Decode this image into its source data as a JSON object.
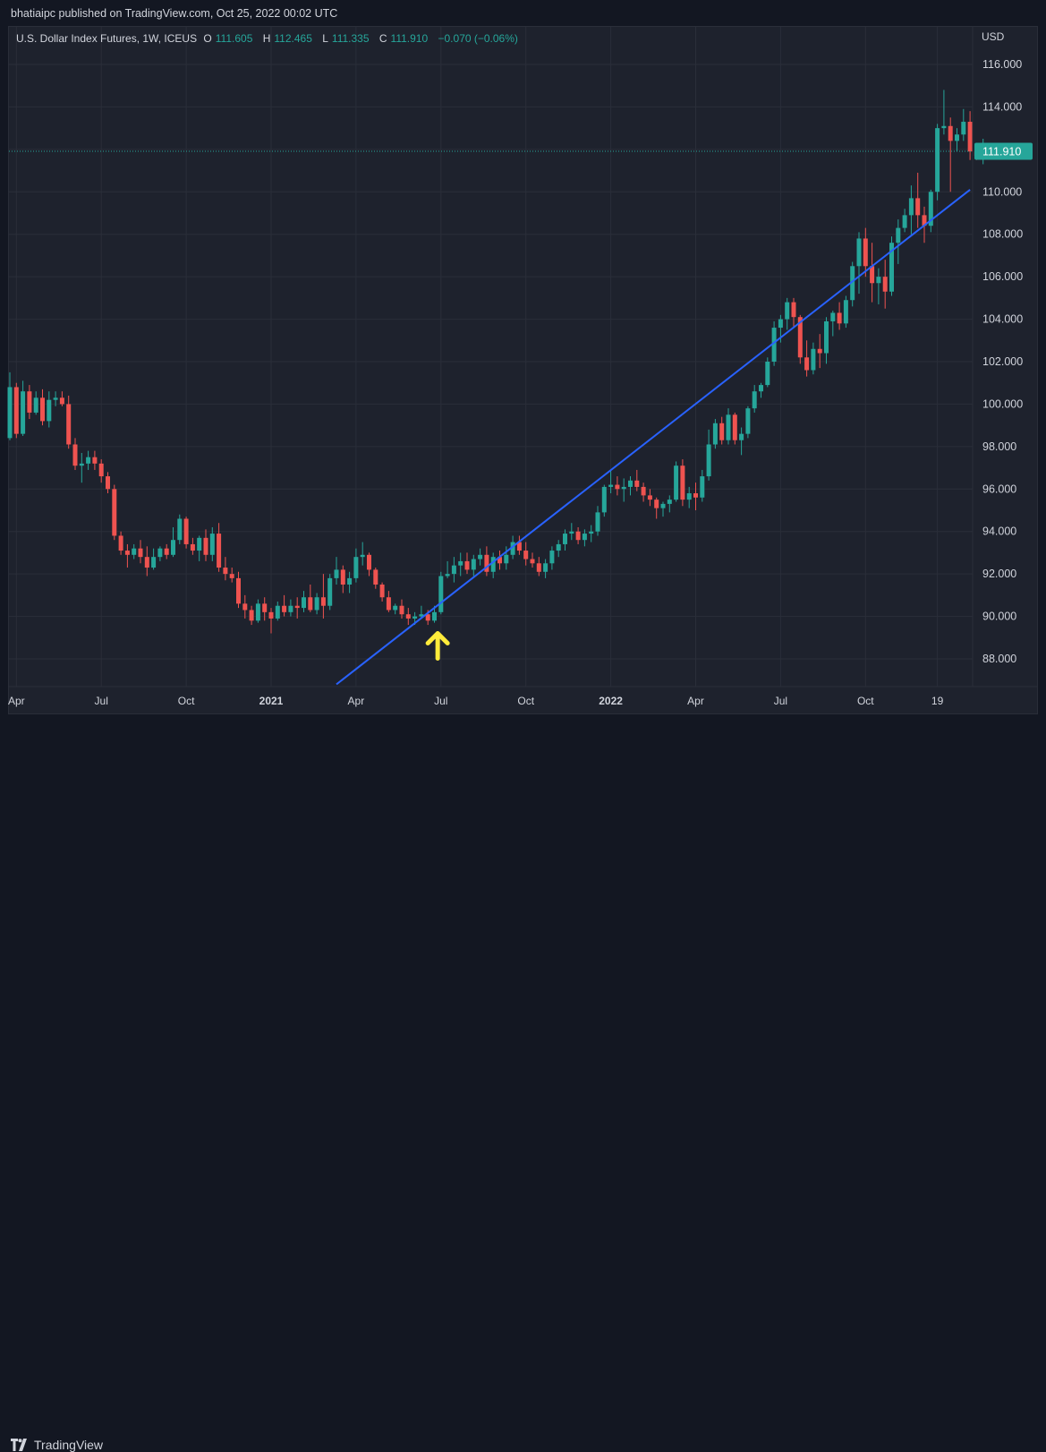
{
  "header": {
    "published": "bhatiaipc published on TradingView.com, Oct 25, 2022 00:02 UTC"
  },
  "legend": {
    "symbol": "U.S. Dollar Index Futures, 1W, ICEUS",
    "o_label": "O",
    "o_value": "111.605",
    "h_label": "H",
    "h_value": "112.465",
    "l_label": "L",
    "l_value": "111.335",
    "c_label": "C",
    "c_value": "111.910",
    "change": "−0.070 (−0.06%)"
  },
  "footer": {
    "brand": "TradingView"
  },
  "colors": {
    "up": "#26a69a",
    "down": "#ef5350",
    "trendline": "#2962ff",
    "arrow": "#ffeb3b",
    "price_tag": "#26a69a"
  },
  "chart_data": {
    "type": "candlestick",
    "title": "U.S. Dollar Index Futures, 1W, ICEUS",
    "currency": "USD",
    "ylim": [
      86.8,
      117.2
    ],
    "y_ticks": [
      "116.000",
      "114.000",
      "112.000",
      "110.000",
      "108.000",
      "106.000",
      "104.000",
      "102.000",
      "100.000",
      "98.000",
      "96.000",
      "94.000",
      "92.000",
      "90.000",
      "88.000"
    ],
    "x_ticks": [
      {
        "label": "Apr",
        "bold": false,
        "i": 1
      },
      {
        "label": "Jul",
        "bold": false,
        "i": 14
      },
      {
        "label": "Oct",
        "bold": false,
        "i": 27
      },
      {
        "label": "2021",
        "bold": true,
        "i": 40
      },
      {
        "label": "Apr",
        "bold": false,
        "i": 53
      },
      {
        "label": "Jul",
        "bold": false,
        "i": 66
      },
      {
        "label": "Oct",
        "bold": false,
        "i": 79
      },
      {
        "label": "2022",
        "bold": true,
        "i": 92
      },
      {
        "label": "Apr",
        "bold": false,
        "i": 105
      },
      {
        "label": "Jul",
        "bold": false,
        "i": 118
      },
      {
        "label": "Oct",
        "bold": false,
        "i": 131
      },
      {
        "label": "19",
        "bold": false,
        "i": 142
      }
    ],
    "last_price": "111.910",
    "last_price_value": 111.91,
    "trendline": {
      "start": {
        "i": 50,
        "value": 86.8
      },
      "end": {
        "i": 147,
        "value": 110.1
      }
    },
    "annotation": {
      "type": "up-arrow",
      "i": 65.5,
      "value": 89.2
    },
    "candles": [
      [
        98.4,
        101.5,
        98.3,
        100.8
      ],
      [
        100.8,
        101.0,
        98.4,
        98.6
      ],
      [
        98.6,
        101.1,
        98.5,
        100.6
      ],
      [
        100.6,
        100.9,
        99.3,
        99.6
      ],
      [
        99.6,
        100.6,
        99.5,
        100.3
      ],
      [
        100.3,
        100.7,
        99.0,
        99.2
      ],
      [
        99.2,
        100.6,
        98.9,
        100.2
      ],
      [
        100.2,
        100.6,
        99.9,
        100.3
      ],
      [
        100.3,
        100.6,
        99.9,
        100.0
      ],
      [
        100.0,
        100.4,
        97.9,
        98.1
      ],
      [
        98.1,
        98.4,
        96.9,
        97.1
      ],
      [
        97.1,
        97.7,
        96.3,
        97.2
      ],
      [
        97.2,
        97.8,
        96.9,
        97.5
      ],
      [
        97.5,
        97.8,
        96.9,
        97.2
      ],
      [
        97.2,
        97.4,
        96.3,
        96.6
      ],
      [
        96.6,
        96.8,
        95.8,
        96.0
      ],
      [
        96.0,
        96.2,
        93.6,
        93.8
      ],
      [
        93.8,
        94.0,
        92.9,
        93.1
      ],
      [
        93.1,
        93.4,
        92.3,
        92.9
      ],
      [
        92.9,
        93.4,
        92.7,
        93.2
      ],
      [
        93.2,
        93.6,
        92.5,
        92.8
      ],
      [
        92.8,
        93.3,
        91.9,
        92.3
      ],
      [
        92.3,
        93.2,
        92.2,
        92.8
      ],
      [
        92.8,
        93.3,
        92.6,
        93.2
      ],
      [
        93.2,
        93.4,
        92.7,
        92.9
      ],
      [
        92.9,
        94.2,
        92.8,
        93.6
      ],
      [
        93.6,
        94.8,
        93.4,
        94.6
      ],
      [
        94.6,
        94.7,
        93.2,
        93.4
      ],
      [
        93.4,
        93.7,
        92.9,
        93.1
      ],
      [
        93.1,
        93.8,
        92.6,
        93.7
      ],
      [
        93.7,
        94.1,
        92.6,
        92.9
      ],
      [
        92.9,
        94.2,
        92.6,
        93.9
      ],
      [
        93.9,
        94.4,
        92.1,
        92.3
      ],
      [
        92.3,
        92.8,
        91.7,
        92.0
      ],
      [
        92.0,
        92.3,
        91.6,
        91.8
      ],
      [
        91.8,
        92.1,
        90.4,
        90.6
      ],
      [
        90.6,
        91.0,
        89.9,
        90.3
      ],
      [
        90.3,
        90.5,
        89.6,
        89.8
      ],
      [
        89.8,
        90.8,
        89.7,
        90.6
      ],
      [
        90.6,
        90.9,
        89.8,
        90.2
      ],
      [
        90.2,
        90.4,
        89.2,
        89.9
      ],
      [
        89.9,
        90.7,
        89.8,
        90.5
      ],
      [
        90.5,
        91.0,
        90.0,
        90.2
      ],
      [
        90.2,
        90.8,
        90.0,
        90.5
      ],
      [
        90.5,
        90.9,
        89.9,
        90.4
      ],
      [
        90.4,
        91.2,
        90.2,
        90.9
      ],
      [
        90.9,
        91.5,
        90.2,
        90.3
      ],
      [
        90.3,
        91.1,
        90.1,
        90.9
      ],
      [
        90.9,
        92.0,
        89.9,
        90.5
      ],
      [
        90.5,
        92.0,
        90.3,
        91.8
      ],
      [
        91.8,
        92.8,
        91.5,
        92.2
      ],
      [
        92.2,
        92.4,
        91.1,
        91.5
      ],
      [
        91.5,
        92.1,
        91.1,
        91.8
      ],
      [
        91.8,
        93.2,
        91.6,
        92.8
      ],
      [
        92.8,
        93.5,
        92.4,
        92.9
      ],
      [
        92.9,
        93.0,
        91.9,
        92.2
      ],
      [
        92.2,
        92.3,
        91.3,
        91.5
      ],
      [
        91.5,
        91.6,
        90.7,
        90.9
      ],
      [
        90.9,
        91.2,
        90.2,
        90.3
      ],
      [
        90.3,
        90.6,
        90.1,
        90.5
      ],
      [
        90.5,
        90.8,
        89.9,
        90.1
      ],
      [
        90.1,
        90.4,
        89.6,
        89.9
      ],
      [
        89.9,
        90.2,
        89.6,
        90.0
      ],
      [
        90.0,
        90.5,
        89.9,
        90.1
      ],
      [
        90.1,
        90.3,
        89.6,
        89.8
      ],
      [
        89.8,
        90.5,
        89.7,
        90.2
      ],
      [
        90.2,
        92.1,
        90.1,
        91.9
      ],
      [
        91.9,
        92.6,
        91.8,
        92.0
      ],
      [
        92.0,
        92.8,
        91.6,
        92.4
      ],
      [
        92.4,
        93.0,
        91.9,
        92.6
      ],
      [
        92.6,
        93.0,
        92.0,
        92.2
      ],
      [
        92.2,
        92.9,
        91.9,
        92.7
      ],
      [
        92.7,
        93.2,
        92.4,
        92.9
      ],
      [
        92.9,
        93.3,
        91.9,
        92.1
      ],
      [
        92.1,
        93.0,
        91.8,
        92.8
      ],
      [
        92.8,
        93.1,
        92.2,
        92.5
      ],
      [
        92.5,
        93.3,
        92.2,
        92.9
      ],
      [
        92.9,
        93.8,
        92.7,
        93.5
      ],
      [
        93.5,
        93.8,
        92.9,
        93.1
      ],
      [
        93.1,
        93.5,
        92.4,
        92.7
      ],
      [
        92.7,
        93.0,
        92.3,
        92.5
      ],
      [
        92.5,
        92.8,
        91.9,
        92.1
      ],
      [
        92.1,
        92.7,
        91.8,
        92.5
      ],
      [
        92.5,
        93.3,
        92.2,
        93.1
      ],
      [
        93.1,
        93.6,
        92.8,
        93.4
      ],
      [
        93.4,
        94.1,
        93.1,
        93.9
      ],
      [
        93.9,
        94.4,
        93.6,
        94.0
      ],
      [
        94.0,
        94.2,
        93.4,
        93.6
      ],
      [
        93.6,
        94.1,
        93.3,
        93.9
      ],
      [
        93.9,
        94.3,
        93.5,
        94.0
      ],
      [
        94.0,
        95.2,
        93.8,
        94.9
      ],
      [
        94.9,
        96.2,
        94.7,
        96.1
      ],
      [
        96.1,
        96.9,
        95.8,
        96.2
      ],
      [
        96.2,
        96.6,
        95.7,
        96.0
      ],
      [
        96.0,
        96.5,
        95.4,
        96.1
      ],
      [
        96.1,
        96.6,
        95.7,
        96.4
      ],
      [
        96.4,
        96.9,
        95.9,
        96.1
      ],
      [
        96.1,
        96.3,
        95.4,
        95.7
      ],
      [
        95.7,
        96.0,
        95.2,
        95.5
      ],
      [
        95.5,
        95.6,
        94.6,
        95.1
      ],
      [
        95.1,
        95.4,
        94.7,
        95.3
      ],
      [
        95.3,
        95.7,
        94.9,
        95.5
      ],
      [
        95.5,
        97.3,
        95.4,
        97.1
      ],
      [
        97.1,
        97.4,
        95.2,
        95.5
      ],
      [
        95.5,
        96.1,
        95.1,
        95.8
      ],
      [
        95.8,
        96.3,
        95.0,
        95.6
      ],
      [
        95.6,
        96.9,
        95.4,
        96.6
      ],
      [
        96.6,
        98.8,
        96.4,
        98.1
      ],
      [
        98.1,
        99.3,
        97.9,
        99.1
      ],
      [
        99.1,
        99.4,
        98.1,
        98.3
      ],
      [
        98.3,
        99.8,
        98.1,
        99.5
      ],
      [
        99.5,
        99.6,
        98.1,
        98.3
      ],
      [
        98.3,
        98.9,
        97.6,
        98.6
      ],
      [
        98.6,
        99.9,
        98.4,
        99.8
      ],
      [
        99.8,
        100.9,
        99.6,
        100.6
      ],
      [
        100.6,
        101.0,
        100.3,
        100.9
      ],
      [
        100.9,
        102.2,
        100.8,
        102.0
      ],
      [
        102.0,
        103.9,
        101.8,
        103.6
      ],
      [
        103.6,
        104.2,
        102.9,
        104.0
      ],
      [
        104.0,
        105.0,
        103.5,
        104.8
      ],
      [
        104.8,
        105.0,
        103.6,
        104.1
      ],
      [
        104.1,
        104.2,
        101.9,
        102.2
      ],
      [
        102.2,
        103.0,
        101.3,
        101.6
      ],
      [
        101.6,
        102.9,
        101.4,
        102.6
      ],
      [
        102.6,
        103.3,
        101.7,
        102.4
      ],
      [
        102.4,
        104.1,
        101.9,
        103.9
      ],
      [
        103.9,
        104.4,
        103.2,
        104.3
      ],
      [
        104.3,
        104.8,
        103.5,
        103.8
      ],
      [
        103.8,
        105.1,
        103.6,
        104.9
      ],
      [
        104.9,
        106.7,
        104.6,
        106.5
      ],
      [
        106.5,
        108.1,
        105.2,
        107.8
      ],
      [
        107.8,
        108.3,
        106.0,
        106.5
      ],
      [
        106.5,
        107.6,
        104.8,
        105.7
      ],
      [
        105.7,
        106.4,
        104.7,
        106.0
      ],
      [
        106.0,
        106.8,
        104.5,
        105.3
      ],
      [
        105.3,
        107.9,
        105.1,
        107.6
      ],
      [
        107.6,
        108.7,
        106.6,
        108.3
      ],
      [
        108.3,
        109.2,
        108.1,
        108.9
      ],
      [
        108.9,
        110.3,
        108.0,
        109.7
      ],
      [
        109.7,
        110.9,
        108.3,
        108.9
      ],
      [
        108.9,
        109.3,
        107.6,
        108.4
      ],
      [
        108.4,
        110.1,
        108.1,
        110.0
      ],
      [
        110.0,
        113.2,
        109.6,
        113.0
      ],
      [
        113.0,
        114.8,
        112.7,
        113.1
      ],
      [
        113.1,
        113.5,
        110.0,
        112.4
      ],
      [
        112.4,
        113.0,
        111.9,
        112.7
      ],
      [
        112.7,
        113.9,
        112.4,
        113.3
      ],
      [
        113.3,
        113.8,
        111.5,
        111.9
      ],
      [
        111.9,
        112.0,
        111.5,
        111.7
      ],
      [
        111.6,
        112.5,
        111.3,
        111.9
      ]
    ]
  }
}
